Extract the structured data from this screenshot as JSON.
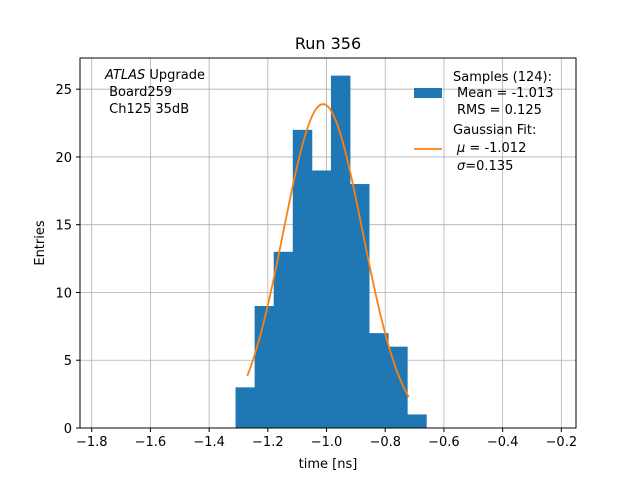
{
  "chart_data": {
    "type": "bar",
    "title": "Run 356",
    "xlabel": "time [ns]",
    "ylabel": "Entries",
    "xlim": [
      -1.84,
      -0.15
    ],
    "ylim": [
      0,
      27.3
    ],
    "xticks": [
      -1.8,
      -1.6,
      -1.4,
      -1.2,
      -1.0,
      -0.8,
      -0.6,
      -0.4,
      -0.2
    ],
    "xtick_labels": [
      "−1.8",
      "−1.6",
      "−1.4",
      "−1.2",
      "−1.0",
      "−0.8",
      "−0.6",
      "−0.4",
      "−0.2"
    ],
    "yticks": [
      0,
      5,
      10,
      15,
      20,
      25
    ],
    "ytick_labels": [
      "0",
      "5",
      "10",
      "15",
      "20",
      "25"
    ],
    "grid": true,
    "legend_position": "top-right",
    "annotation": {
      "atlas": "ATLAS",
      "upgrade": " Upgrade",
      "board": " Board259",
      "channel": " Ch125 35dB"
    },
    "histogram": {
      "name": "Samples (124):",
      "color": "#1f77b4",
      "bin_edges": [
        -1.31,
        -1.245,
        -1.18,
        -1.115,
        -1.05,
        -0.985,
        -0.92,
        -0.855,
        -0.79,
        -0.725,
        -0.66
      ],
      "counts": [
        3,
        9,
        13,
        22,
        19,
        26,
        18,
        7,
        6,
        1
      ],
      "stats": [
        "Mean = -1.013",
        "RMS = 0.125"
      ]
    },
    "fit": {
      "name": "Gaussian Fit:",
      "color": "#ff7f0e",
      "type": "gaussian",
      "amplitude": 23.9,
      "mu": -1.012,
      "sigma": 0.135,
      "x_range": [
        -1.27,
        -0.72
      ],
      "labels": {
        "mu_symbol": "μ",
        "mu_value": " = -1.012",
        "sigma_symbol": "σ",
        "sigma_value": "=0.135"
      }
    }
  }
}
